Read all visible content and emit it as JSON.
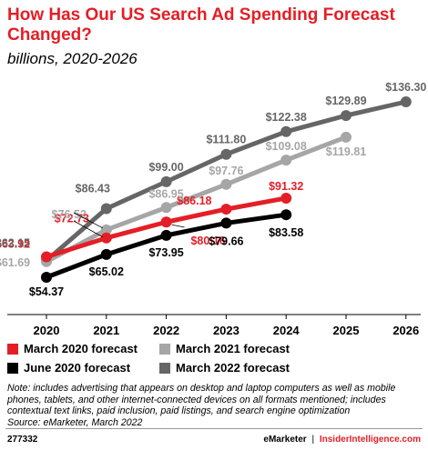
{
  "header": {
    "title": "How Has Our US Search Ad Spending Forecast Changed?",
    "subtitle": "billions, 2020-2026"
  },
  "chart_data": {
    "type": "line",
    "title": "How Has Our US Search Ad Spending Forecast Changed?",
    "subtitle": "billions, 2020-2026",
    "xlabel": "",
    "ylabel": "",
    "x": [
      2020,
      2021,
      2022,
      2023,
      2024,
      2025,
      2026
    ],
    "ylim": [
      50,
      140
    ],
    "grid": false,
    "legend_position": "bottom",
    "series": [
      {
        "name": "March 2020 forecast",
        "color": "#e41e26",
        "x": [
          2020,
          2021,
          2022,
          2023,
          2024
        ],
        "values": [
          63.92,
          72.73,
          80.16,
          86.18,
          91.32
        ],
        "labels": [
          "$63.92",
          "$72.73",
          "$80.16",
          "$86.18",
          "$91.32"
        ]
      },
      {
        "name": "June 2020 forecast",
        "color": "#000000",
        "x": [
          2020,
          2021,
          2022,
          2023,
          2024
        ],
        "values": [
          54.37,
          65.02,
          73.95,
          79.66,
          83.58
        ],
        "labels": [
          "$54.37",
          "$65.02",
          "$73.95",
          "$79.66",
          "$83.58"
        ]
      },
      {
        "name": "March 2021 forecast",
        "color": "#a6a6a6",
        "x": [
          2020,
          2021,
          2022,
          2023,
          2024,
          2025
        ],
        "values": [
          61.69,
          76.52,
          86.95,
          97.76,
          109.08,
          119.81
        ],
        "labels": [
          "$61.69",
          "$76.52",
          "$86.95",
          "$97.76",
          "$109.08",
          "$119.81"
        ]
      },
      {
        "name": "March 2022 forecast",
        "color": "#666666",
        "x": [
          2020,
          2021,
          2022,
          2023,
          2024,
          2025,
          2026
        ],
        "values": [
          62.15,
          86.43,
          99.0,
          111.8,
          122.38,
          129.89,
          136.3
        ],
        "labels": [
          "$62.15",
          "$86.43",
          "$99.00",
          "$111.80",
          "$122.38",
          "$129.89",
          "$136.30"
        ]
      }
    ]
  },
  "legend": {
    "items": [
      {
        "label": "March 2020 forecast",
        "color": "#e41e26"
      },
      {
        "label": "March 2021 forecast",
        "color": "#a6a6a6"
      },
      {
        "label": "June 2020 forecast",
        "color": "#000000"
      },
      {
        "label": "March 2022 forecast",
        "color": "#666666"
      }
    ]
  },
  "note": "Note: includes advertising that appears on desktop and laptop computers as well as mobile phones, tablets, and other internet-connected devices on all formats mentioned; includes contextual text links, paid inclusion, paid listings, and search engine optimization",
  "source": "Source: eMarketer, March 2022",
  "footer": {
    "id": "277332",
    "brand": "eMarketer",
    "separator": "|",
    "brand2": "InsiderIntelligence.com"
  }
}
